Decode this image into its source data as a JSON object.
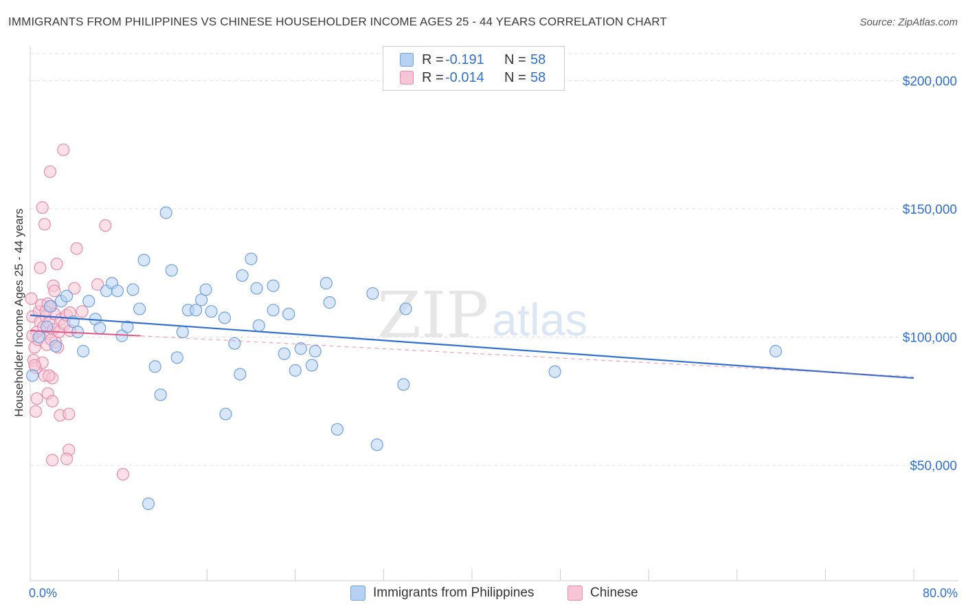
{
  "header": {
    "title": "IMMIGRANTS FROM PHILIPPINES VS CHINESE HOUSEHOLDER INCOME AGES 25 - 44 YEARS CORRELATION CHART",
    "source": "Source: ZipAtlas.com"
  },
  "watermark": {
    "zip": "ZIP",
    "atlas": "atlas"
  },
  "legend": {
    "rows": [
      {
        "r_label": "R =",
        "r_value": "-0.191",
        "n_label": "N =",
        "n_value": "58",
        "color": "#6fa0e0"
      },
      {
        "r_label": "R =",
        "r_value": "-0.014",
        "n_label": "N =",
        "n_value": "58",
        "color": "#e98aab"
      }
    ]
  },
  "bottom_legend": {
    "series1": "Immigrants from Philippines",
    "series2": "Chinese"
  },
  "colors": {
    "blue_fill": "#b7d1f3",
    "blue_stroke": "#6fa0e0",
    "blue_line": "#2f6fd0",
    "pink_fill": "#f7c6d6",
    "pink_stroke": "#e98aab",
    "pink_line": "#e05585",
    "axis_text": "#2f6fd0"
  },
  "chart_data": {
    "type": "scatter",
    "title": "IMMIGRANTS FROM PHILIPPINES VS CHINESE HOUSEHOLDER INCOME AGES 25 - 44 YEARS CORRELATION CHART",
    "xlabel": "",
    "ylabel": "Householder Income Ages 25 - 44 years",
    "xlim": [
      0,
      80
    ],
    "ylim": [
      5000,
      210000
    ],
    "x_tick_labels": [
      "0.0%",
      "80.0%"
    ],
    "y_ticks": [
      50000,
      100000,
      150000,
      200000
    ],
    "y_tick_labels": [
      "$50,000",
      "$100,000",
      "$150,000",
      "$200,000"
    ],
    "grid": true,
    "series": [
      {
        "name": "Immigrants from Philippines",
        "trend": {
          "x": [
            0,
            80
          ],
          "y": [
            108500,
            84000
          ],
          "style": "solid"
        },
        "points": [
          [
            0.2,
            85000
          ],
          [
            0.8,
            100000
          ],
          [
            1.8,
            112000
          ],
          [
            1.5,
            104000
          ],
          [
            2.3,
            96500
          ],
          [
            2.8,
            114000
          ],
          [
            3.3,
            116000
          ],
          [
            3.9,
            106000
          ],
          [
            4.3,
            102000
          ],
          [
            4.8,
            94500
          ],
          [
            5.3,
            114000
          ],
          [
            5.9,
            107000
          ],
          [
            6.3,
            103500
          ],
          [
            6.9,
            118000
          ],
          [
            7.4,
            121000
          ],
          [
            7.9,
            118000
          ],
          [
            8.3,
            100500
          ],
          [
            8.8,
            104000
          ],
          [
            9.3,
            118500
          ],
          [
            9.9,
            111000
          ],
          [
            10.3,
            130000
          ],
          [
            10.7,
            35000
          ],
          [
            11.3,
            88500
          ],
          [
            11.8,
            77500
          ],
          [
            12.3,
            148500
          ],
          [
            12.8,
            126000
          ],
          [
            13.3,
            92000
          ],
          [
            13.8,
            102000
          ],
          [
            14.3,
            110500
          ],
          [
            15.0,
            110500
          ],
          [
            15.5,
            114500
          ],
          [
            15.9,
            118500
          ],
          [
            16.4,
            110000
          ],
          [
            17.6,
            107500
          ],
          [
            17.7,
            70000
          ],
          [
            18.5,
            97500
          ],
          [
            19.0,
            85500
          ],
          [
            19.2,
            124000
          ],
          [
            20.0,
            130500
          ],
          [
            20.5,
            119000
          ],
          [
            20.7,
            104500
          ],
          [
            22.0,
            120000
          ],
          [
            22.0,
            110500
          ],
          [
            23.0,
            93500
          ],
          [
            23.4,
            109000
          ],
          [
            24.0,
            87000
          ],
          [
            24.5,
            95500
          ],
          [
            25.5,
            89000
          ],
          [
            25.8,
            94500
          ],
          [
            26.8,
            121000
          ],
          [
            27.1,
            113500
          ],
          [
            27.8,
            64000
          ],
          [
            31.0,
            117000
          ],
          [
            31.4,
            58000
          ],
          [
            33.8,
            81500
          ],
          [
            34.0,
            111000
          ],
          [
            47.5,
            86500
          ],
          [
            67.5,
            94500
          ]
        ]
      },
      {
        "name": "Chinese",
        "trend": {
          "x": [
            0,
            10
          ],
          "y": [
            102500,
            100500
          ],
          "style": "solid",
          "extended": {
            "x": [
              10,
              80
            ],
            "y": [
              100500,
              84500
            ],
            "style": "dashed"
          }
        },
        "points": [
          [
            0.1,
            115000
          ],
          [
            0.2,
            108000
          ],
          [
            0.3,
            91000
          ],
          [
            0.4,
            96000
          ],
          [
            0.5,
            88000
          ],
          [
            0.6,
            102000
          ],
          [
            0.7,
            99000
          ],
          [
            0.8,
            110000
          ],
          [
            0.9,
            106000
          ],
          [
            0.2,
            100500
          ],
          [
            1.0,
            112500
          ],
          [
            1.1,
            90000
          ],
          [
            1.2,
            104000
          ],
          [
            1.3,
            85000
          ],
          [
            1.4,
            108000
          ],
          [
            1.5,
            97000
          ],
          [
            0.4,
            89000
          ],
          [
            1.6,
            113000
          ],
          [
            1.7,
            105500
          ],
          [
            1.8,
            102000
          ],
          [
            1.9,
            112000
          ],
          [
            2.0,
            84000
          ],
          [
            2.1,
            103000
          ],
          [
            2.2,
            109000
          ],
          [
            2.3,
            98000
          ],
          [
            0.5,
            71000
          ],
          [
            0.6,
            76000
          ],
          [
            0.9,
            127000
          ],
          [
            1.1,
            150500
          ],
          [
            1.3,
            144000
          ],
          [
            1.4,
            110000
          ],
          [
            1.6,
            78000
          ],
          [
            1.7,
            85000
          ],
          [
            1.9,
            99000
          ],
          [
            2.0,
            75000
          ],
          [
            2.1,
            120000
          ],
          [
            2.2,
            118000
          ],
          [
            2.4,
            128500
          ],
          [
            2.5,
            96000
          ],
          [
            2.6,
            102000
          ],
          [
            2.7,
            69500
          ],
          [
            2.8,
            107000
          ],
          [
            3.0,
            173000
          ],
          [
            3.1,
            105000
          ],
          [
            3.3,
            108500
          ],
          [
            3.5,
            70000
          ],
          [
            3.5,
            56000
          ],
          [
            3.6,
            109500
          ],
          [
            4.0,
            119000
          ],
          [
            4.2,
            134500
          ],
          [
            4.7,
            110000
          ],
          [
            6.1,
            120500
          ],
          [
            6.8,
            143500
          ],
          [
            8.4,
            46500
          ],
          [
            1.8,
            164500
          ],
          [
            2.0,
            52000
          ],
          [
            3.3,
            52500
          ],
          [
            3.6,
            102500
          ]
        ]
      }
    ]
  }
}
